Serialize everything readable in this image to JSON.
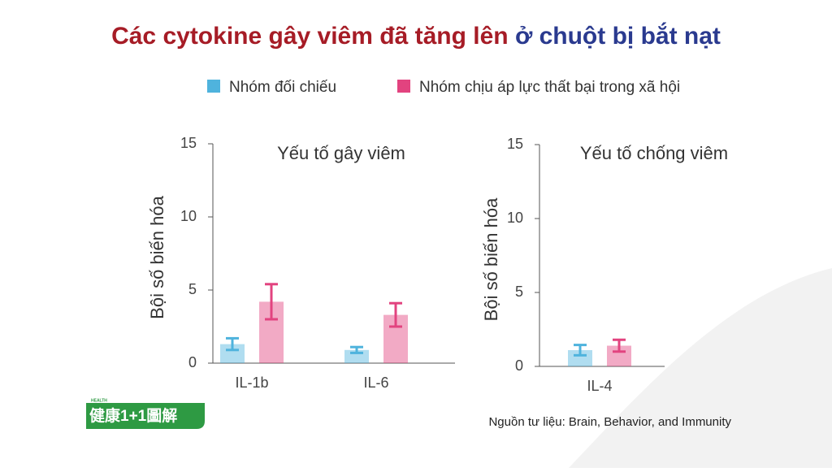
{
  "title_parts": [
    "Các cytokine gây viêm đã tăng lên",
    "ở chuột bị bắt nạt"
  ],
  "chart_data": [
    {
      "type": "bar",
      "title": "Yếu tố gây viêm",
      "y_label": "Bội số biến hóa",
      "categories": [
        "IL-1b",
        "IL-6"
      ],
      "series": [
        {
          "name": "Nhóm đối chiếu",
          "color": "#4fb3dd",
          "values": [
            1.3,
            0.9
          ],
          "errors": [
            0.4,
            0.2
          ]
        },
        {
          "name": "Nhóm chịu áp lực thất bại trong xã hội",
          "color": "#e2437f",
          "values": [
            4.2,
            3.3
          ],
          "errors": [
            1.2,
            0.8
          ]
        }
      ],
      "ylim": [
        0,
        15
      ],
      "yticks": [
        0,
        5,
        10,
        15
      ]
    },
    {
      "type": "bar",
      "title": "Yếu tố chống viêm",
      "y_label": "Bội số biến hóa",
      "categories": [
        "IL-4"
      ],
      "series": [
        {
          "color": "#4fb3dd",
          "values": [
            1.1
          ],
          "errors": [
            0.35
          ]
        },
        {
          "color": "#e2437f",
          "values": [
            1.4
          ],
          "errors": [
            0.4
          ]
        }
      ],
      "ylim": [
        0,
        15
      ],
      "yticks": [
        0,
        5,
        10,
        15
      ]
    }
  ],
  "source": "Nguồn tư liệu: Brain, Behavior, and Immunity",
  "logo": {
    "small": "HEALTH",
    "text": "健康1+1圖解"
  }
}
